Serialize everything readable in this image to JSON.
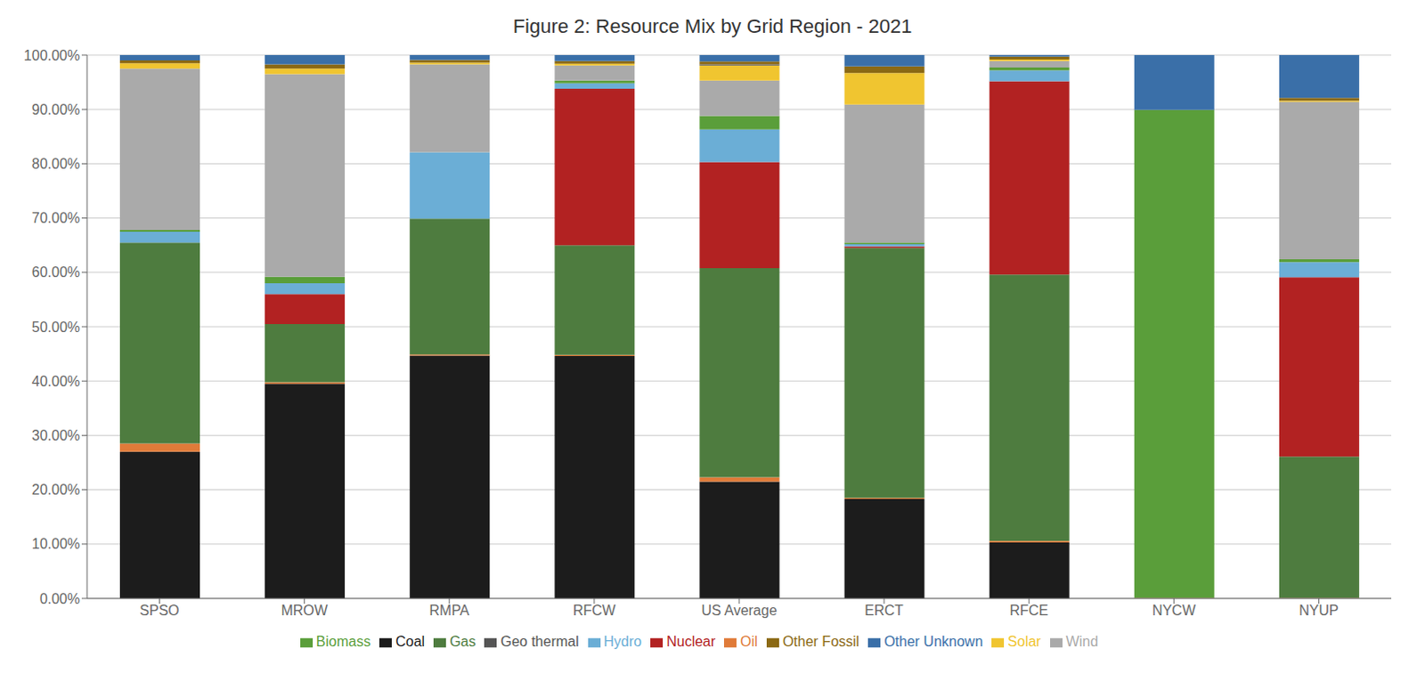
{
  "chart_data": {
    "type": "bar",
    "title": "Figure 2: Resource Mix by Grid Region - 2021",
    "stacked": true,
    "grid": true,
    "legend": "bottom",
    "categories": [
      "SPSO",
      "MROW",
      "RMPA",
      "RFCW",
      "US Average",
      "ERCT",
      "RFCE",
      "NYCW",
      "NYUP"
    ],
    "series": [
      {
        "name": "Coal",
        "color": "#1c1c1c",
        "values": [
          0.27,
          0.395,
          0.447,
          0.446,
          0.215,
          0.183,
          0.103,
          0.0,
          0.0
        ]
      },
      {
        "name": "Oil",
        "color": "#e07b39",
        "values": [
          0.015,
          0.003,
          0.002,
          0.002,
          0.008,
          0.002,
          0.003,
          0.001,
          0.001
        ]
      },
      {
        "name": "Gas",
        "color": "#4e7c3f",
        "values": [
          0.37,
          0.107,
          0.25,
          0.202,
          0.385,
          0.46,
          0.49,
          0.0,
          0.26
        ]
      },
      {
        "name": "Nuclear",
        "color": "#b22222",
        "values": [
          0.0,
          0.055,
          0.0,
          0.288,
          0.195,
          0.003,
          0.356,
          0.0,
          0.33
        ]
      },
      {
        "name": "Hydro",
        "color": "#6baed6",
        "values": [
          0.02,
          0.02,
          0.122,
          0.01,
          0.06,
          0.004,
          0.02,
          0.0,
          0.028
        ]
      },
      {
        "name": "Biomass",
        "color": "#5a9e3a",
        "values": [
          0.003,
          0.012,
          0.0,
          0.005,
          0.025,
          0.003,
          0.005,
          0.898,
          0.005
        ]
      },
      {
        "name": "Wind",
        "color": "#aaaaaa",
        "values": [
          0.297,
          0.373,
          0.162,
          0.028,
          0.065,
          0.254,
          0.012,
          0.0,
          0.29
        ]
      },
      {
        "name": "Solar",
        "color": "#f0c530",
        "values": [
          0.01,
          0.01,
          0.003,
          0.003,
          0.028,
          0.058,
          0.003,
          0.0,
          0.002
        ]
      },
      {
        "name": "Geo thermal",
        "color": "#555555",
        "values": [
          0.0,
          0.0,
          0.0,
          0.0,
          0.002,
          0.0,
          0.0,
          0.0,
          0.0
        ]
      },
      {
        "name": "Other Fossil",
        "color": "#8b6914",
        "values": [
          0.005,
          0.008,
          0.005,
          0.005,
          0.005,
          0.012,
          0.005,
          0.0,
          0.005
        ]
      },
      {
        "name": "Other Unknown",
        "color": "#3a6fa8",
        "values": [
          0.01,
          0.017,
          0.009,
          0.011,
          0.012,
          0.021,
          0.003,
          0.101,
          0.079
        ]
      }
    ],
    "ylim": [
      0.0,
      1.0
    ],
    "yticks": [
      {
        "value": 0.0,
        "label": "0.00%"
      },
      {
        "value": 0.1,
        "label": "10.00%"
      },
      {
        "value": 0.2,
        "label": "20.00%"
      },
      {
        "value": 0.3,
        "label": "30.00%"
      },
      {
        "value": 0.4,
        "label": "40.00%"
      },
      {
        "value": 0.5,
        "label": "50.00%"
      },
      {
        "value": 0.6,
        "label": "60.00%"
      },
      {
        "value": 0.7,
        "label": "70.00%"
      },
      {
        "value": 0.8,
        "label": "80.00%"
      },
      {
        "value": 0.9,
        "label": "90.00%"
      },
      {
        "value": 1.0,
        "label": "100.00%"
      }
    ]
  }
}
